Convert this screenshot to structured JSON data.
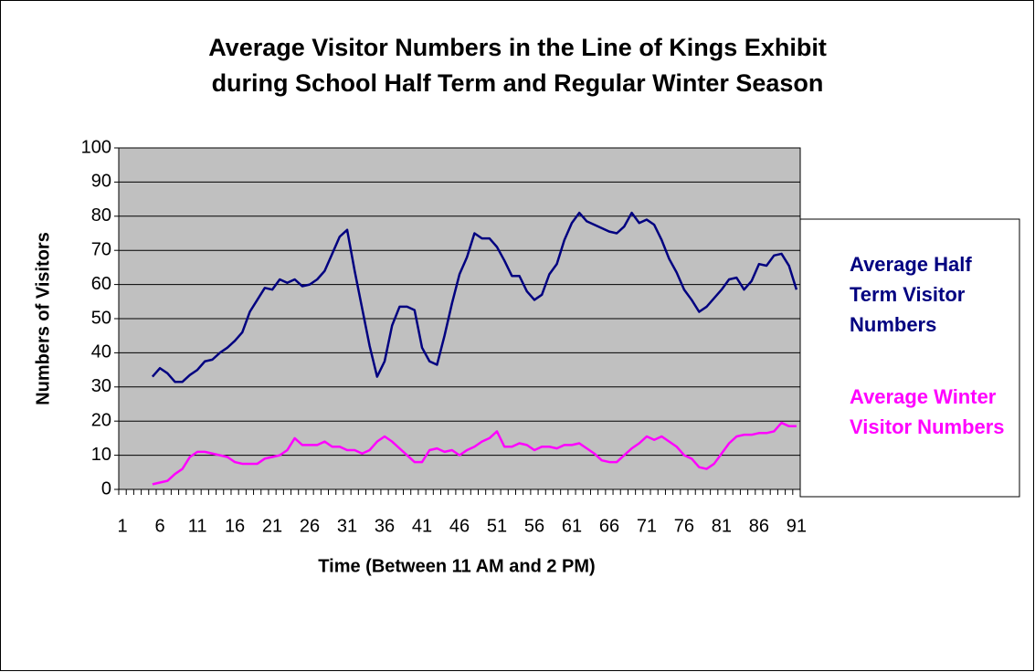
{
  "chart_data": {
    "type": "line",
    "title": [
      "Average Visitor Numbers in the Line of Kings Exhibit",
      "during School Half Term and Regular Winter Season"
    ],
    "x_label": "Time (Between 11 AM and 2 PM)",
    "y_label": "Numbers of Visitors",
    "categories": [
      1,
      null,
      null,
      null,
      null,
      6,
      null,
      null,
      null,
      null,
      11,
      null,
      null,
      null,
      null,
      16,
      null,
      null,
      null,
      null,
      21,
      null,
      null,
      null,
      null,
      26,
      null,
      null,
      null,
      null,
      31,
      null,
      null,
      null,
      null,
      36,
      null,
      null,
      null,
      null,
      41,
      null,
      null,
      null,
      null,
      46,
      null,
      null,
      null,
      null,
      51,
      null,
      null,
      null,
      null,
      56,
      null,
      null,
      null,
      null,
      61,
      null,
      null,
      null,
      null,
      66,
      null,
      null,
      null,
      null,
      71,
      null,
      null,
      null,
      null,
      76,
      null,
      null,
      null,
      null,
      81,
      null,
      null,
      null,
      null,
      86,
      null,
      null,
      null,
      null,
      91
    ],
    "series": [
      {
        "name": "Average Half Term Visitor Numbers",
        "color": "#000080",
        "values": [
          null,
          null,
          null,
          null,
          33,
          35.5,
          34,
          31.5,
          31.5,
          33.5,
          35,
          37.5,
          38,
          40,
          41.5,
          43.5,
          46,
          52,
          55.5,
          59,
          58.5,
          61.5,
          60.5,
          61.5,
          59.5,
          60,
          61.5,
          64,
          69,
          74,
          76,
          64,
          53,
          42,
          33,
          37.5,
          48,
          53.5,
          53.5,
          52.5,
          41.5,
          37.5,
          36.5,
          45,
          54.5,
          63,
          68,
          75,
          73.5,
          73.5,
          71,
          67,
          62.5,
          62.5,
          58,
          55.5,
          57,
          63,
          66,
          73,
          78,
          81,
          78.5,
          77.5,
          76.5,
          75.5,
          75,
          77,
          81,
          78,
          79,
          77.5,
          73,
          67.5,
          63.5,
          58.5,
          55.5,
          52,
          53.5,
          56,
          58.5,
          61.5,
          62,
          58.5,
          61,
          66,
          65.5,
          68.5,
          69,
          65.5,
          58.5
        ]
      },
      {
        "name": "Average Winter Visitor Numbers",
        "color": "#ff00ff",
        "values": [
          null,
          null,
          null,
          null,
          1.5,
          2,
          2.5,
          4.5,
          6,
          9.5,
          11,
          11,
          10.5,
          10,
          9.5,
          8,
          7.5,
          7.5,
          7.5,
          9,
          9.5,
          10,
          11.5,
          15,
          13,
          13,
          13,
          14,
          12.5,
          12.5,
          11.5,
          11.5,
          10.5,
          11.5,
          14,
          15.5,
          14,
          12,
          10,
          8,
          8,
          11.5,
          12,
          11,
          11.5,
          10,
          11.5,
          12.5,
          14,
          15,
          17,
          12.5,
          12.5,
          13.5,
          13,
          11.5,
          12.5,
          12.5,
          12,
          13,
          13,
          13.5,
          12,
          10.5,
          8.5,
          8,
          8,
          10,
          12,
          13.5,
          15.5,
          14.5,
          15.5,
          14,
          12.5,
          10,
          9,
          6.5,
          6,
          7.5,
          10.5,
          13.5,
          15.5,
          16,
          16,
          16.5,
          16.5,
          17,
          19.5,
          18.5,
          18.5
        ]
      }
    ],
    "ylim": [
      0,
      100
    ],
    "yticks": [
      0,
      10,
      20,
      30,
      40,
      50,
      60,
      70,
      80,
      90,
      100
    ],
    "grid": true,
    "plot_background": "#c0c0c0",
    "legend": "right"
  }
}
